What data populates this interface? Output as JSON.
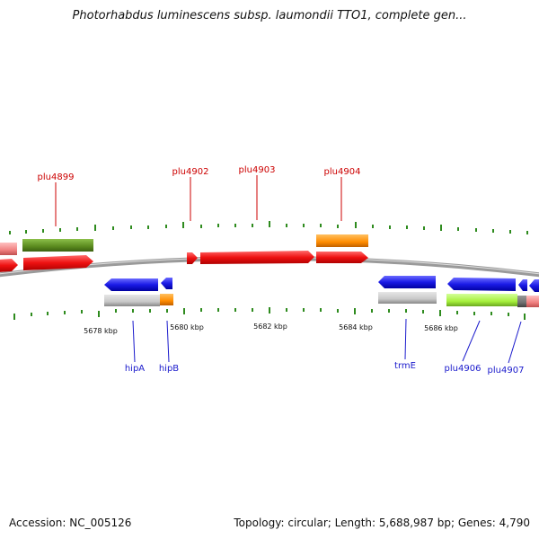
{
  "title": "Photorhabdus luminescens subsp. laumondii TTO1, complete gen...",
  "footer": {
    "accession": "Accession: NC_005126",
    "summary": "Topology: circular; Length: 5,688,987 bp; Genes: 4,790"
  },
  "colors": {
    "backbone": "#8c8c8c",
    "tick": "#2e8b1e",
    "forward_label": "#cc0000",
    "reverse_label": "#1a1acc",
    "red": "#ee1111",
    "blue": "#1a1ae6",
    "orange": "#ff8c00",
    "green": "#5a8a1e",
    "grey": "#c8c8c8",
    "lime": "#a6f03c",
    "pink": "#f08080",
    "dark_grey": "#707070"
  },
  "scale_labels": [
    "5678 kbp",
    "5680 kbp",
    "5682 kbp",
    "5684 kbp",
    "5686 kbp"
  ],
  "gene_labels": [
    {
      "text": "plu4899",
      "strand": "forward"
    },
    {
      "text": "plu4902",
      "strand": "forward"
    },
    {
      "text": "plu4903",
      "strand": "forward"
    },
    {
      "text": "plu4904",
      "strand": "forward"
    },
    {
      "text": "hipA",
      "strand": "reverse"
    },
    {
      "text": "hipB",
      "strand": "reverse"
    },
    {
      "text": "trmE",
      "strand": "reverse"
    },
    {
      "text": "plu4906",
      "strand": "reverse"
    },
    {
      "text": "plu4907",
      "strand": "reverse"
    }
  ]
}
